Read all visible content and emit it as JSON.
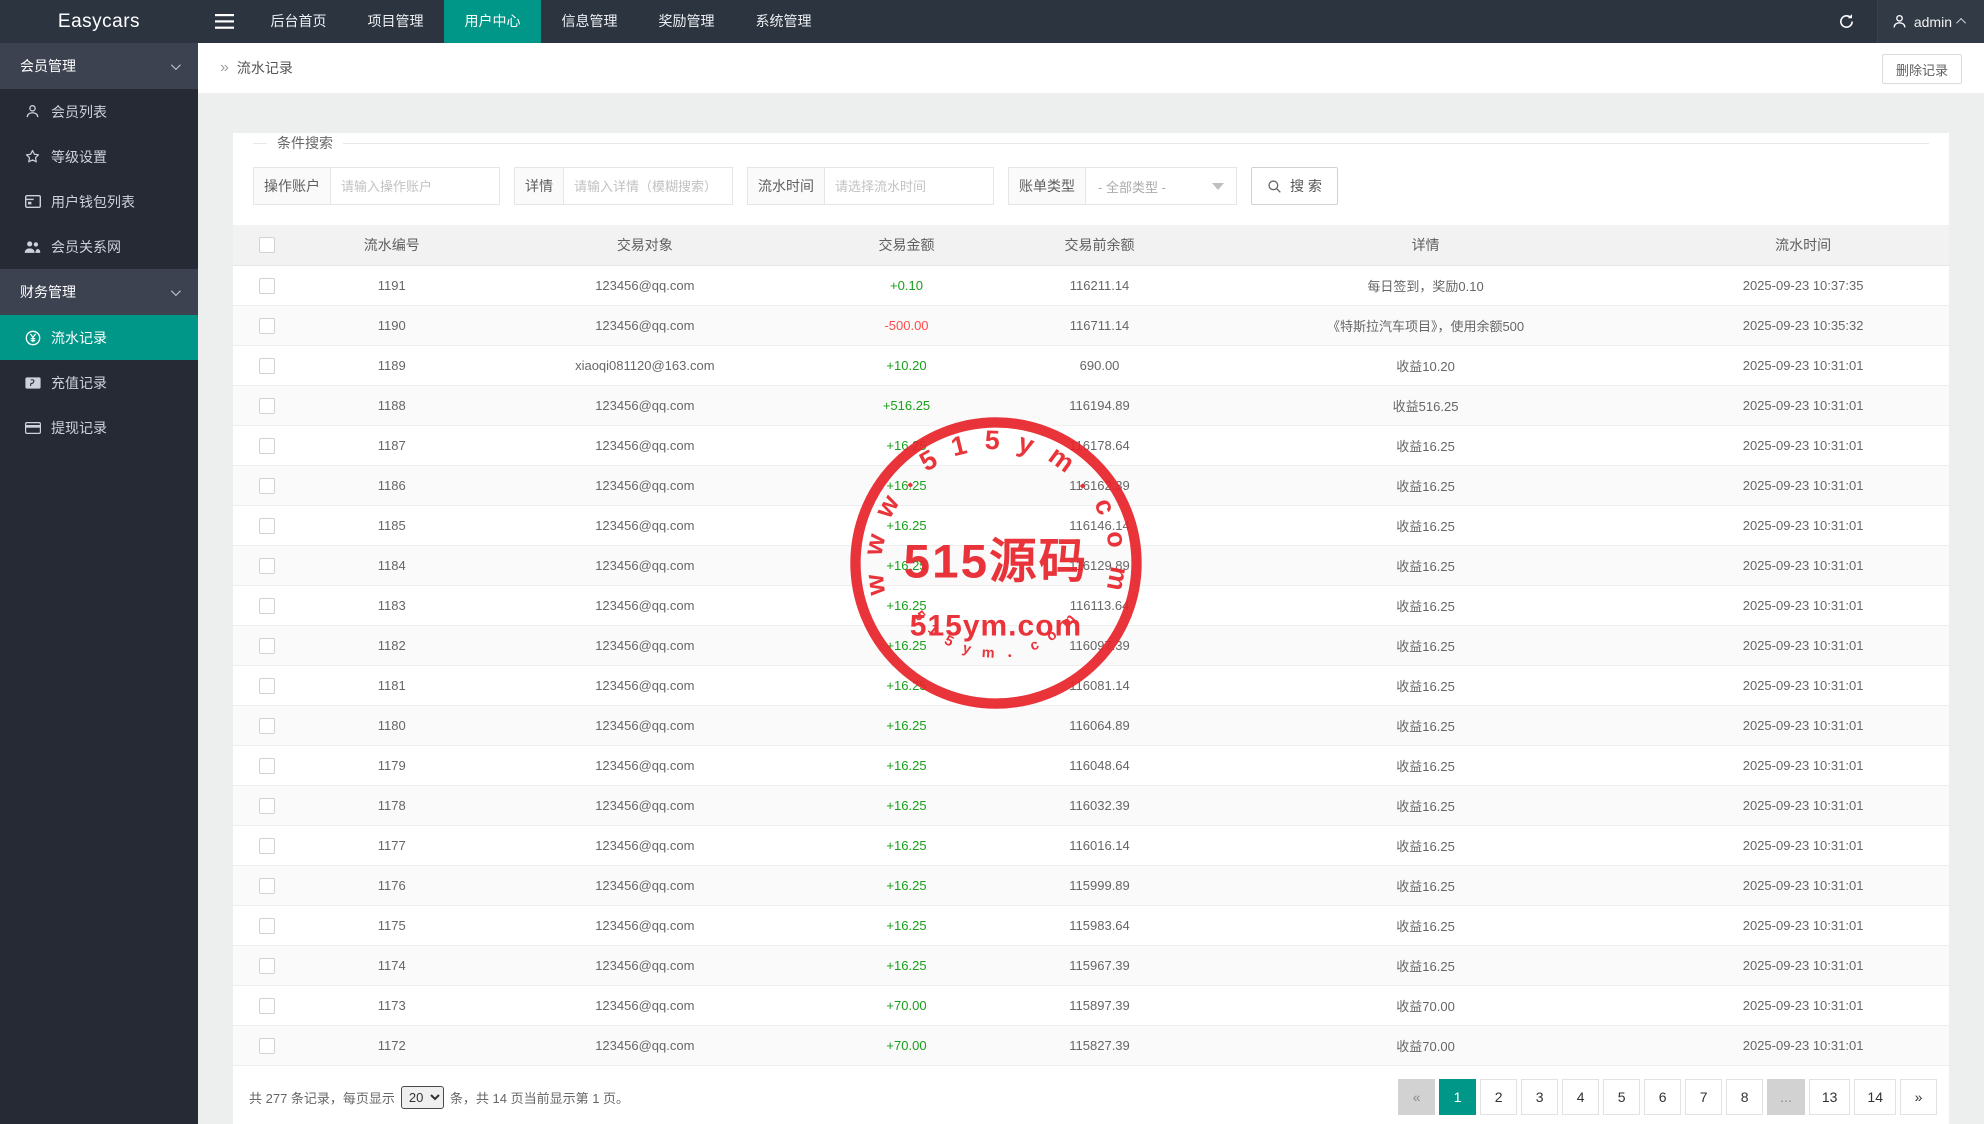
{
  "brand": "Easycars",
  "navbar": {
    "items": [
      "后台首页",
      "项目管理",
      "用户中心",
      "信息管理",
      "奖励管理",
      "系统管理"
    ],
    "active_index": 2,
    "user": "admin"
  },
  "sidebar": {
    "groups": [
      {
        "label": "会员管理",
        "items": [
          {
            "icon": "user-icon",
            "label": "会员列表",
            "active": false
          },
          {
            "icon": "star-icon",
            "label": "等级设置",
            "active": false
          },
          {
            "icon": "wallet-icon",
            "label": "用户钱包列表",
            "active": false
          },
          {
            "icon": "users-icon",
            "label": "会员关系网",
            "active": false
          }
        ]
      },
      {
        "label": "财务管理",
        "items": [
          {
            "icon": "yen-icon",
            "label": "流水记录",
            "active": true
          },
          {
            "icon": "paypal-icon",
            "label": "充值记录",
            "active": false
          },
          {
            "icon": "card-icon",
            "label": "提现记录",
            "active": false
          }
        ]
      }
    ]
  },
  "breadcrumb": {
    "sep": "»",
    "title": "流水记录"
  },
  "toolbar": {
    "delete_label": "删除记录"
  },
  "filter": {
    "legend": "条件搜索",
    "fields": [
      {
        "label": "操作账户",
        "placeholder": "请输入操作账户"
      },
      {
        "label": "详情",
        "placeholder": "请输入详情（模糊搜索）"
      },
      {
        "label": "流水时间",
        "placeholder": "请选择流水时间"
      }
    ],
    "select": {
      "label": "账单类型",
      "value": "- 全部类型 -"
    },
    "search_label": "搜 索"
  },
  "table": {
    "columns": [
      "流水编号",
      "交易对象",
      "交易金额",
      "交易前余额",
      "详情",
      "流水时间"
    ],
    "rows": [
      {
        "id": "1191",
        "account": "123456@qq.com",
        "amount": "+0.10",
        "balance": "116211.14",
        "detail": "每日签到，奖励0.10",
        "time": "2025-09-23 10:37:35"
      },
      {
        "id": "1190",
        "account": "123456@qq.com",
        "amount": "-500.00",
        "balance": "116711.14",
        "detail": "《特斯拉汽车项目》，使用余额500",
        "time": "2025-09-23 10:35:32"
      },
      {
        "id": "1189",
        "account": "xiaoqi081120@163.com",
        "amount": "+10.20",
        "balance": "690.00",
        "detail": "收益10.20",
        "time": "2025-09-23 10:31:01"
      },
      {
        "id": "1188",
        "account": "123456@qq.com",
        "amount": "+516.25",
        "balance": "116194.89",
        "detail": "收益516.25",
        "time": "2025-09-23 10:31:01"
      },
      {
        "id": "1187",
        "account": "123456@qq.com",
        "amount": "+16.25",
        "balance": "116178.64",
        "detail": "收益16.25",
        "time": "2025-09-23 10:31:01"
      },
      {
        "id": "1186",
        "account": "123456@qq.com",
        "amount": "+16.25",
        "balance": "116162.39",
        "detail": "收益16.25",
        "time": "2025-09-23 10:31:01"
      },
      {
        "id": "1185",
        "account": "123456@qq.com",
        "amount": "+16.25",
        "balance": "116146.14",
        "detail": "收益16.25",
        "time": "2025-09-23 10:31:01"
      },
      {
        "id": "1184",
        "account": "123456@qq.com",
        "amount": "+16.25",
        "balance": "116129.89",
        "detail": "收益16.25",
        "time": "2025-09-23 10:31:01"
      },
      {
        "id": "1183",
        "account": "123456@qq.com",
        "amount": "+16.25",
        "balance": "116113.64",
        "detail": "收益16.25",
        "time": "2025-09-23 10:31:01"
      },
      {
        "id": "1182",
        "account": "123456@qq.com",
        "amount": "+16.25",
        "balance": "116097.39",
        "detail": "收益16.25",
        "time": "2025-09-23 10:31:01"
      },
      {
        "id": "1181",
        "account": "123456@qq.com",
        "amount": "+16.25",
        "balance": "116081.14",
        "detail": "收益16.25",
        "time": "2025-09-23 10:31:01"
      },
      {
        "id": "1180",
        "account": "123456@qq.com",
        "amount": "+16.25",
        "balance": "116064.89",
        "detail": "收益16.25",
        "time": "2025-09-23 10:31:01"
      },
      {
        "id": "1179",
        "account": "123456@qq.com",
        "amount": "+16.25",
        "balance": "116048.64",
        "detail": "收益16.25",
        "time": "2025-09-23 10:31:01"
      },
      {
        "id": "1178",
        "account": "123456@qq.com",
        "amount": "+16.25",
        "balance": "116032.39",
        "detail": "收益16.25",
        "time": "2025-09-23 10:31:01"
      },
      {
        "id": "1177",
        "account": "123456@qq.com",
        "amount": "+16.25",
        "balance": "116016.14",
        "detail": "收益16.25",
        "time": "2025-09-23 10:31:01"
      },
      {
        "id": "1176",
        "account": "123456@qq.com",
        "amount": "+16.25",
        "balance": "115999.89",
        "detail": "收益16.25",
        "time": "2025-09-23 10:31:01"
      },
      {
        "id": "1175",
        "account": "123456@qq.com",
        "amount": "+16.25",
        "balance": "115983.64",
        "detail": "收益16.25",
        "time": "2025-09-23 10:31:01"
      },
      {
        "id": "1174",
        "account": "123456@qq.com",
        "amount": "+16.25",
        "balance": "115967.39",
        "detail": "收益16.25",
        "time": "2025-09-23 10:31:01"
      },
      {
        "id": "1173",
        "account": "123456@qq.com",
        "amount": "+70.00",
        "balance": "115897.39",
        "detail": "收益70.00",
        "time": "2025-09-23 10:31:01"
      },
      {
        "id": "1172",
        "account": "123456@qq.com",
        "amount": "+70.00",
        "balance": "115827.39",
        "detail": "收益70.00",
        "time": "2025-09-23 10:31:01"
      }
    ]
  },
  "footer": {
    "total_prefix": "共 277 条记录，每页显示",
    "page_size": "20",
    "total_suffix": "条，共 14 页当前显示第 1 页。"
  },
  "pagination": [
    {
      "label": "«",
      "state": "disabled"
    },
    {
      "label": "1",
      "state": "active"
    },
    {
      "label": "2",
      "state": "normal"
    },
    {
      "label": "3",
      "state": "normal"
    },
    {
      "label": "4",
      "state": "normal"
    },
    {
      "label": "5",
      "state": "normal"
    },
    {
      "label": "6",
      "state": "normal"
    },
    {
      "label": "7",
      "state": "normal"
    },
    {
      "label": "8",
      "state": "normal"
    },
    {
      "label": "...",
      "state": "disabled"
    },
    {
      "label": "13",
      "state": "normal"
    },
    {
      "label": "14",
      "state": "normal"
    },
    {
      "label": "»",
      "state": "normal"
    }
  ],
  "stamp": {
    "top_text": "www.515ym.com",
    "center_text": "515源码",
    "sub_text": "515ym.com",
    "bottom_text": "5 1 5 y m ． c o m",
    "color": "#e8232a"
  },
  "colors": {
    "accent": "#009688",
    "positive": "#18a018",
    "negative": "#ff4a4a",
    "stamp": "#e8232a"
  }
}
